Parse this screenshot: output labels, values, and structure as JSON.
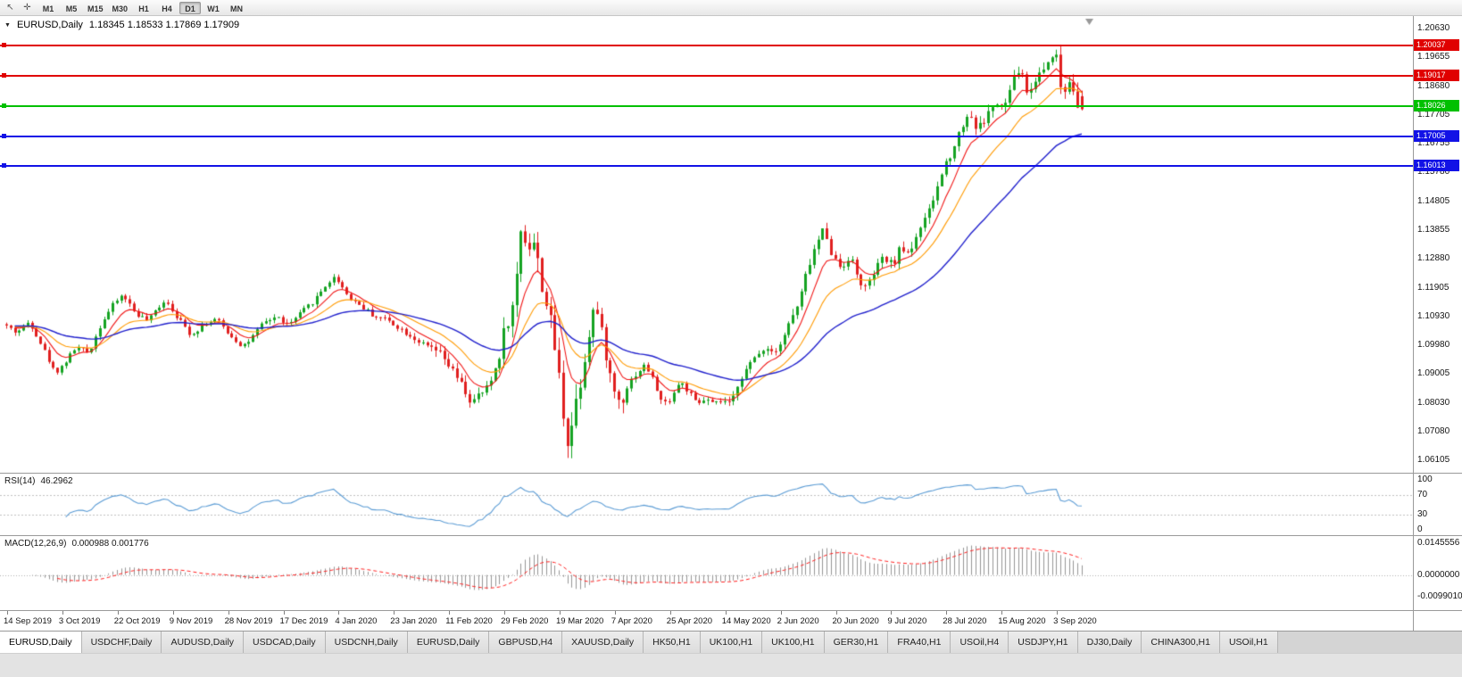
{
  "icons": {
    "dropdown": "▼",
    "cursor": "↖",
    "crosshair": "✛"
  },
  "colors": {
    "candle_up": "#15a322",
    "candle_down": "#e01f1f",
    "ma_fast": "#f01414",
    "ma_mid": "#ff9a00",
    "ma_slow": "#2020cc",
    "rsi_line": "#5a9bd4",
    "macd_hist": "#969696",
    "macd_signal": "#ff2020",
    "hline_red": "#e00000",
    "hline_green": "#00c000",
    "hline_blue": "#1212e6"
  },
  "toolbar": {
    "timeframes": [
      "M1",
      "M5",
      "M15",
      "M30",
      "H1",
      "H4",
      "D1",
      "W1",
      "MN"
    ],
    "active": "D1"
  },
  "chart": {
    "symbol_title": "EURUSD,Daily",
    "ohlc": "1.18345 1.18533 1.17869 1.17909",
    "price_axis_labels": [
      "1.20630",
      "1.19655",
      "1.18680",
      "1.17705",
      "1.16755",
      "1.15780",
      "1.14805",
      "1.13855",
      "1.12880",
      "1.11905",
      "1.10930",
      "1.09980",
      "1.09005",
      "1.08030",
      "1.07080",
      "1.06105"
    ],
    "hlines": [
      {
        "label": "1.20037",
        "value": 1.20037,
        "color_key": "hline_red"
      },
      {
        "label": "1.19017",
        "value": 1.19017,
        "color_key": "hline_red"
      },
      {
        "label": "1.18026",
        "value": 1.18026,
        "color_key": "hline_green"
      },
      {
        "label": "1.17005",
        "value": 1.17005,
        "color_key": "hline_blue"
      },
      {
        "label": "1.16013",
        "value": 1.16013,
        "color_key": "hline_blue"
      }
    ],
    "date_labels": [
      "14 Sep 2019",
      "3 Oct 2019",
      "22 Oct 2019",
      "9 Nov 2019",
      "28 Nov 2019",
      "17 Dec 2019",
      "4 Jan 2020",
      "23 Jan 2020",
      "11 Feb 2020",
      "29 Feb 2020",
      "19 Mar 2020",
      "7 Apr 2020",
      "25 Apr 2020",
      "14 May 2020",
      "2 Jun 2020",
      "20 Jun 2020",
      "9 Jul 2020",
      "28 Jul 2020",
      "15 Aug 2020",
      "3 Sep 2020"
    ]
  },
  "rsi": {
    "label": "RSI(14)",
    "value": "46.2962",
    "axis_labels": [
      "100",
      "70",
      "30",
      "0"
    ],
    "levels": [
      70,
      30
    ]
  },
  "macd": {
    "label": "MACD(12,26,9)",
    "values": "0.000988 0.001776",
    "axis_labels": [
      "0.0145556",
      "0.0000000",
      "-0.0099010"
    ],
    "range": [
      -0.009901,
      0.0145556
    ]
  },
  "tabs": {
    "active_index": 0,
    "items": [
      "EURUSD,Daily",
      "USDCHF,Daily",
      "AUDUSD,Daily",
      "USDCAD,Daily",
      "USDCNH,Daily",
      "EURUSD,Daily",
      "GBPUSD,H4",
      "XAUUSD,Daily",
      "HK50,H1",
      "UK100,H1",
      "UK100,H1",
      "GER30,H1",
      "FRA40,H1",
      "USOil,H4",
      "USDJPY,H1",
      "DJ30,Daily",
      "CHINA300,H1",
      "USOil,H1"
    ]
  },
  "chart_data": {
    "type": "candlestick",
    "symbol": "EURUSD",
    "period": "Daily",
    "visible_range": {
      "price_min": 1.0575,
      "price_max": 1.2095
    },
    "num_candles": 254,
    "seed": 42,
    "last_candle": [
      1.18345,
      1.18533,
      1.17869,
      1.17909
    ],
    "moving_averages": [
      {
        "period": 8,
        "color_key": "ma_fast"
      },
      {
        "period": 18,
        "color_key": "ma_mid"
      },
      {
        "period": 45,
        "color_key": "ma_slow"
      }
    ],
    "indicators": {
      "rsi_period": 14,
      "macd": [
        12,
        26,
        9
      ]
    },
    "macd_draw_range": [
      -0.0135,
      0.0148
    ],
    "volatility": [
      [
        0,
        0.0016
      ],
      [
        100,
        0.0028
      ],
      [
        116,
        0.0055
      ],
      [
        124,
        0.0065
      ],
      [
        136,
        0.0045
      ],
      [
        146,
        0.002
      ],
      [
        183,
        0.0026
      ],
      [
        213,
        0.003
      ],
      [
        246,
        0.004
      ]
    ],
    "anchors": [
      [
        0,
        1.1068
      ],
      [
        3,
        1.104
      ],
      [
        6,
        1.1078
      ],
      [
        9,
        1.0995
      ],
      [
        12,
        1.0905
      ],
      [
        14,
        1.0932
      ],
      [
        17,
        1.0992
      ],
      [
        20,
        1.0972
      ],
      [
        23,
        1.1075
      ],
      [
        26,
        1.114
      ],
      [
        28,
        1.1168
      ],
      [
        31,
        1.1105
      ],
      [
        34,
        1.1078
      ],
      [
        36,
        1.112
      ],
      [
        38,
        1.1152
      ],
      [
        41,
        1.1088
      ],
      [
        44,
        1.1032
      ],
      [
        47,
        1.1068
      ],
      [
        50,
        1.1085
      ],
      [
        53,
        1.1035
      ],
      [
        56,
        1.0995
      ],
      [
        58,
        1.1015
      ],
      [
        61,
        1.1072
      ],
      [
        64,
        1.1094
      ],
      [
        67,
        1.1065
      ],
      [
        70,
        1.1108
      ],
      [
        73,
        1.1148
      ],
      [
        76,
        1.1205
      ],
      [
        78,
        1.1228
      ],
      [
        81,
        1.1162
      ],
      [
        84,
        1.113
      ],
      [
        87,
        1.1096
      ],
      [
        90,
        1.1085
      ],
      [
        93,
        1.1056
      ],
      [
        96,
        1.1026
      ],
      [
        99,
        1.0996
      ],
      [
        102,
        1.0976
      ],
      [
        105,
        1.0922
      ],
      [
        108,
        1.0856
      ],
      [
        110,
        1.08
      ],
      [
        112,
        1.0832
      ],
      [
        114,
        1.0856
      ],
      [
        116,
        1.0936
      ],
      [
        118,
        1.1062
      ],
      [
        120,
        1.1136
      ],
      [
        122,
        1.1452
      ],
      [
        123,
        1.1292
      ],
      [
        124,
        1.136
      ],
      [
        125,
        1.1332
      ],
      [
        126,
        1.1232
      ],
      [
        127,
        1.1182
      ],
      [
        128,
        1.1112
      ],
      [
        130,
        1.0962
      ],
      [
        132,
        1.0722
      ],
      [
        133,
        1.0656
      ],
      [
        134,
        1.0782
      ],
      [
        136,
        1.0902
      ],
      [
        138,
        1.1076
      ],
      [
        139,
        1.114
      ],
      [
        141,
        1.1012
      ],
      [
        143,
        1.0862
      ],
      [
        145,
        1.0802
      ],
      [
        147,
        1.0872
      ],
      [
        149,
        1.0906
      ],
      [
        151,
        1.0932
      ],
      [
        153,
        1.0872
      ],
      [
        155,
        1.0796
      ],
      [
        157,
        1.0822
      ],
      [
        159,
        1.0876
      ],
      [
        161,
        1.0842
      ],
      [
        163,
        1.0796
      ],
      [
        165,
        1.0816
      ],
      [
        167,
        1.0796
      ],
      [
        169,
        1.0812
      ],
      [
        171,
        1.0796
      ],
      [
        173,
        1.0882
      ],
      [
        175,
        1.0922
      ],
      [
        177,
        1.0962
      ],
      [
        179,
        1.0992
      ],
      [
        181,
        1.0976
      ],
      [
        183,
        1.1012
      ],
      [
        185,
        1.1082
      ],
      [
        187,
        1.1136
      ],
      [
        189,
        1.1252
      ],
      [
        191,
        1.1332
      ],
      [
        193,
        1.1396
      ],
      [
        195,
        1.1292
      ],
      [
        197,
        1.1256
      ],
      [
        199,
        1.1302
      ],
      [
        201,
        1.1216
      ],
      [
        203,
        1.1186
      ],
      [
        205,
        1.1252
      ],
      [
        207,
        1.1292
      ],
      [
        209,
        1.1266
      ],
      [
        211,
        1.1326
      ],
      [
        213,
        1.1306
      ],
      [
        215,
        1.1382
      ],
      [
        217,
        1.1422
      ],
      [
        219,
        1.1502
      ],
      [
        221,
        1.1592
      ],
      [
        223,
        1.1652
      ],
      [
        225,
        1.1722
      ],
      [
        227,
        1.1782
      ],
      [
        229,
        1.1722
      ],
      [
        231,
        1.1762
      ],
      [
        233,
        1.1812
      ],
      [
        235,
        1.1786
      ],
      [
        237,
        1.1872
      ],
      [
        239,
        1.1932
      ],
      [
        241,
        1.1832
      ],
      [
        243,
        1.1906
      ],
      [
        245,
        1.1932
      ],
      [
        247,
        1.1996
      ],
      [
        248,
        1.1942
      ],
      [
        249,
        1.1822
      ],
      [
        250,
        1.1872
      ],
      [
        251,
        1.1902
      ],
      [
        252,
        1.1842
      ],
      [
        253,
        1.1791
      ]
    ]
  }
}
